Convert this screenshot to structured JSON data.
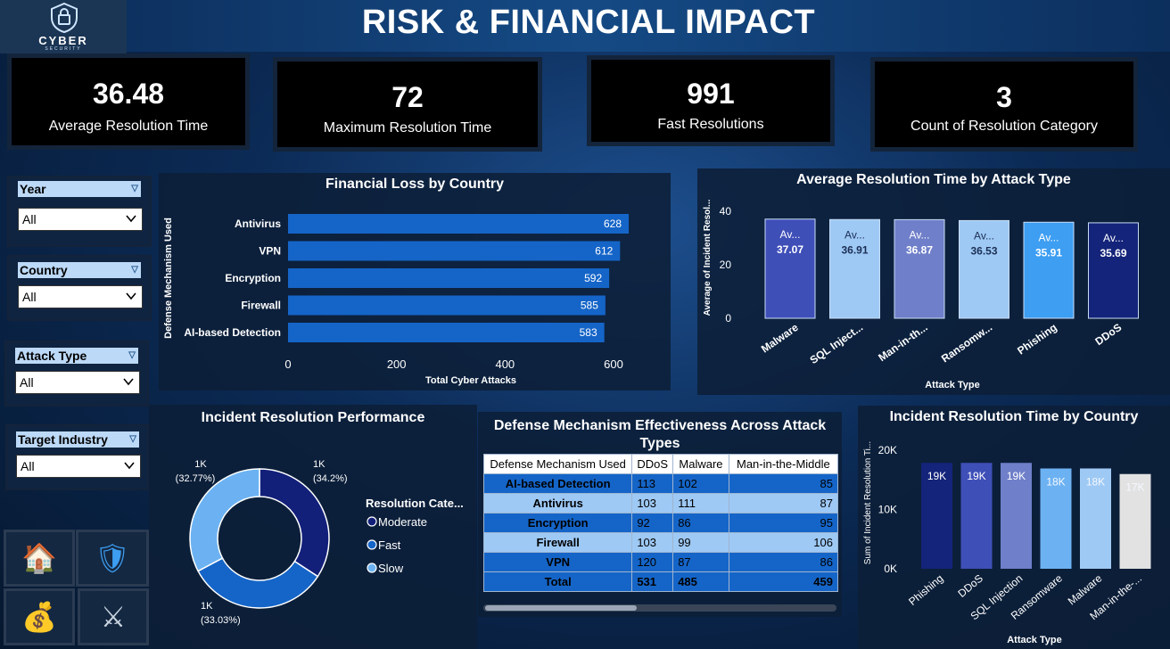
{
  "header": {
    "title": "RISK & FINANCIAL IMPACT",
    "logo_text": "CYBER",
    "logo_sub": "SECURITY"
  },
  "kpis": [
    {
      "value": "36.48",
      "label": "Average Resolution Time"
    },
    {
      "value": "72",
      "label": "Maximum Resolution Time"
    },
    {
      "value": "991",
      "label": "Fast Resolutions"
    },
    {
      "value": "3",
      "label": "Count of Resolution Category"
    }
  ],
  "slicers": [
    {
      "label": "Year",
      "value": "All"
    },
    {
      "label": "Country",
      "value": "All"
    },
    {
      "label": "Attack Type",
      "value": "All"
    },
    {
      "label": "Target Industry",
      "value": "All"
    }
  ],
  "nav": [
    {
      "icon": "home-icon",
      "glyph": "🏠"
    },
    {
      "icon": "shield-icon",
      "glyph": "🛡"
    },
    {
      "icon": "money-bag-icon",
      "glyph": "💰"
    },
    {
      "icon": "crossed-swords-icon",
      "glyph": "⚔"
    }
  ],
  "chart_data": [
    {
      "id": "financial-loss",
      "type": "bar",
      "orientation": "horizontal",
      "title": "Financial Loss by Country",
      "xlabel": "Total Cyber Attacks",
      "ylabel": "Defense Mechanism Used",
      "categories": [
        "Antivirus",
        "VPN",
        "Encryption",
        "Firewall",
        "AI-based Detection"
      ],
      "values": [
        628,
        612,
        592,
        585,
        583
      ],
      "xlim": [
        0,
        600
      ],
      "xticks": [
        "0",
        "200",
        "400",
        "600"
      ],
      "color": "#1565c8"
    },
    {
      "id": "avg-resolution-by-attack",
      "type": "bar",
      "title": "Average Resolution Time by Attack Type",
      "xlabel": "Attack Type",
      "ylabel": "Average of Incident Resol...",
      "categories": [
        "Malware",
        "SQL Inject...",
        "Man-in-th...",
        "Ransomw...",
        "Phishing",
        "DDoS"
      ],
      "values": [
        37.07,
        36.91,
        36.87,
        36.53,
        35.91,
        35.69
      ],
      "data_label_prefix": "Av...",
      "ylim": [
        0,
        45
      ],
      "yticks": [
        "0",
        "20",
        "40"
      ],
      "colors": [
        "#3f4fb8",
        "#9ec9f5",
        "#6f7fc9",
        "#9ec9f5",
        "#3d9ef2",
        "#14247a"
      ]
    },
    {
      "id": "incident-resolution-performance",
      "type": "pie",
      "title": "Incident Resolution Performance",
      "legend_title": "Resolution Cate...",
      "legend_placement": "right",
      "slices": [
        {
          "name": "Moderate",
          "label": "1K",
          "pct": "(34.2%)",
          "value": 34.2,
          "color": "#12207a"
        },
        {
          "name": "Fast",
          "label": "1K",
          "pct": "(33.03%)",
          "value": 33.03,
          "color": "#1565c8"
        },
        {
          "name": "Slow",
          "label": "1K",
          "pct": "(32.77%)",
          "value": 32.77,
          "color": "#6cb2f2"
        }
      ]
    },
    {
      "id": "resolution-time-by-country",
      "type": "bar",
      "title": "Incident Resolution Time by Country",
      "xlabel": "Attack Type",
      "ylabel": "Sum of Incident Resolution Ti...",
      "categories": [
        "Phishing",
        "DDoS",
        "SQL Injection",
        "Ransomware",
        "Malware",
        "Man-in-the-..."
      ],
      "values": [
        19000,
        19000,
        19000,
        18000,
        18000,
        17000
      ],
      "value_labels": [
        "19K",
        "19K",
        "19K",
        "18K",
        "18K",
        "17K"
      ],
      "ylim": [
        0,
        20000
      ],
      "yticks": [
        "0K",
        "10K",
        "20K"
      ],
      "colors": [
        "#14247a",
        "#3f4fb8",
        "#6f7fc9",
        "#6cb2f2",
        "#9ec9f5",
        "#e2e2e2"
      ]
    },
    {
      "id": "defense-effectiveness",
      "type": "table",
      "title": "Defense Mechanism Effectiveness Across Attack Types",
      "columns": [
        "Defense Mechanism Used",
        "DDoS",
        "Malware",
        "Man-in-the-Middle"
      ],
      "rows": [
        [
          "AI-based Detection",
          "113",
          "102",
          "85"
        ],
        [
          "Antivirus",
          "103",
          "111",
          "87"
        ],
        [
          "Encryption",
          "92",
          "86",
          "95"
        ],
        [
          "Firewall",
          "103",
          "99",
          "106"
        ],
        [
          "VPN",
          "120",
          "87",
          "86"
        ]
      ],
      "total": [
        "Total",
        "531",
        "485",
        "459"
      ]
    }
  ],
  "colors": {
    "bg": "#0b2a55",
    "header": "#154a85",
    "accent": "#1565c8"
  }
}
